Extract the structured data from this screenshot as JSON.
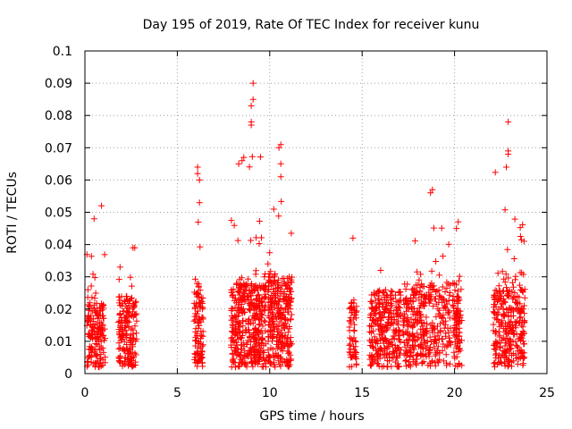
{
  "chart_data": {
    "type": "scatter",
    "title": "Day 195 of 2019, Rate Of TEC Index for receiver kunu",
    "xlabel": "GPS time / hours",
    "ylabel": "ROTI / TECUs",
    "xlim": [
      0,
      25
    ],
    "ylim": [
      0,
      0.1
    ],
    "xticks": [
      0,
      5,
      10,
      15,
      20,
      25
    ],
    "yticks": [
      0,
      0.01,
      0.02,
      0.03,
      0.04,
      0.05,
      0.06,
      0.07,
      0.08,
      0.09,
      0.1
    ],
    "xtick_labels": [
      "0",
      "5",
      "10",
      "15",
      "20",
      "25"
    ],
    "ytick_labels": [
      "0",
      "0.01",
      "0.02",
      "0.03",
      "0.04",
      "0.05",
      "0.06",
      "0.07",
      "0.08",
      "0.09",
      "0.1"
    ],
    "grid": true,
    "marker": "+",
    "color": "#ff0000",
    "clusters": [
      {
        "x_start": 0.1,
        "x_end": 1.1,
        "y_mean": 0.01,
        "y_max": 0.052,
        "count": 170
      },
      {
        "x_start": 1.8,
        "x_end": 2.8,
        "y_mean": 0.011,
        "y_max": 0.04,
        "count": 170
      },
      {
        "x_start": 5.9,
        "x_end": 6.4,
        "y_mean": 0.013,
        "y_max": 0.064,
        "count": 110
      },
      {
        "x_start": 7.9,
        "x_end": 9.8,
        "y_mean": 0.013,
        "y_max": 0.09,
        "count": 420
      },
      {
        "x_start": 9.9,
        "x_end": 11.2,
        "y_mean": 0.014,
        "y_max": 0.071,
        "count": 300
      },
      {
        "x_start": 14.3,
        "x_end": 14.7,
        "y_mean": 0.01,
        "y_max": 0.042,
        "count": 60
      },
      {
        "x_start": 15.4,
        "x_end": 17.1,
        "y_mean": 0.012,
        "y_max": 0.032,
        "count": 280
      },
      {
        "x_start": 17.2,
        "x_end": 19.8,
        "y_mean": 0.013,
        "y_max": 0.057,
        "count": 360
      },
      {
        "x_start": 19.9,
        "x_end": 20.4,
        "y_mean": 0.011,
        "y_max": 0.047,
        "count": 90
      },
      {
        "x_start": 22.1,
        "x_end": 23.8,
        "y_mean": 0.012,
        "y_max": 0.078,
        "count": 300
      }
    ],
    "notable_points": [
      {
        "x": 9.1,
        "y": 0.09
      },
      {
        "x": 9.1,
        "y": 0.085
      },
      {
        "x": 9.0,
        "y": 0.083
      },
      {
        "x": 9.0,
        "y": 0.078
      },
      {
        "x": 9.0,
        "y": 0.077
      },
      {
        "x": 8.6,
        "y": 0.067
      },
      {
        "x": 8.5,
        "y": 0.066
      },
      {
        "x": 10.6,
        "y": 0.071
      },
      {
        "x": 10.5,
        "y": 0.07
      },
      {
        "x": 10.6,
        "y": 0.065
      },
      {
        "x": 10.6,
        "y": 0.061
      },
      {
        "x": 22.9,
        "y": 0.078
      },
      {
        "x": 22.9,
        "y": 0.069
      },
      {
        "x": 22.9,
        "y": 0.068
      },
      {
        "x": 22.8,
        "y": 0.064
      },
      {
        "x": 6.1,
        "y": 0.064
      },
      {
        "x": 6.1,
        "y": 0.062
      },
      {
        "x": 6.2,
        "y": 0.06
      },
      {
        "x": 6.2,
        "y": 0.053
      },
      {
        "x": 0.9,
        "y": 0.052
      },
      {
        "x": 0.5,
        "y": 0.048
      },
      {
        "x": 18.8,
        "y": 0.057
      },
      {
        "x": 18.7,
        "y": 0.056
      },
      {
        "x": 14.5,
        "y": 0.042
      },
      {
        "x": 20.2,
        "y": 0.047
      },
      {
        "x": 20.1,
        "y": 0.045
      },
      {
        "x": 2.6,
        "y": 0.039
      },
      {
        "x": 2.7,
        "y": 0.039
      },
      {
        "x": 1.9,
        "y": 0.033
      },
      {
        "x": 16.0,
        "y": 0.032
      }
    ]
  }
}
